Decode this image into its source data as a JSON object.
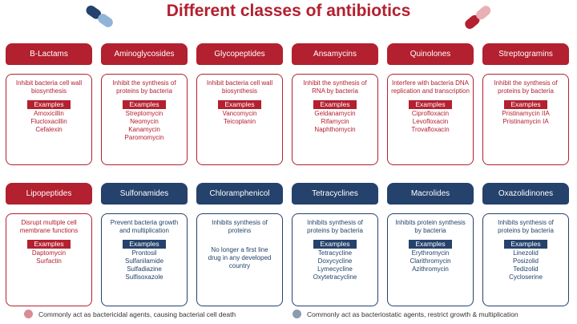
{
  "title": "Different classes of antibiotics",
  "classes": [
    {
      "name": "B-Lactams",
      "color": "#b3202f",
      "mechanism": "Inhibit bacteria cell wall biosynthesis",
      "examples_label": "Examples",
      "examples": [
        "Amoxicillin",
        "Flucloxacillin",
        "Cefalexin"
      ]
    },
    {
      "name": "Aminoglycosides",
      "color": "#b3202f",
      "mechanism": "Inhibit the synthesis of proteins by bacteria",
      "examples_label": "Examples",
      "examples": [
        "Streptomycin",
        "Neomycin",
        "Kanamycin",
        "Paromomycin"
      ]
    },
    {
      "name": "Glycopeptides",
      "color": "#b3202f",
      "mechanism": "Inhibit bacteria cell wall biosynthesis",
      "examples_label": "Examples",
      "examples": [
        "Vancomycin",
        "Teicoplanin"
      ]
    },
    {
      "name": "Ansamycins",
      "color": "#b3202f",
      "mechanism": "Inhibit the synthesis of RNA by bacteria",
      "examples_label": "Examples",
      "examples": [
        "Geldanamycin",
        "Rifamycin",
        "Naphthomycin"
      ]
    },
    {
      "name": "Quinolones",
      "color": "#b3202f",
      "mechanism": "Interfere with bacteria DNA replication and transcription",
      "examples_label": "Examples",
      "examples": [
        "Ciprofloxacin",
        "Levofloxacin",
        "Trovafloxacin"
      ]
    },
    {
      "name": "Streptogramins",
      "color": "#b3202f",
      "mechanism": "Inhibit the synthesis of proteins by bacteria",
      "examples_label": "Examples",
      "examples": [
        "Pristinamycin IIA",
        "Pristinamycin IA"
      ]
    },
    {
      "name": "Lipopeptides",
      "color": "#b3202f",
      "mechanism": "Disrupt multiple cell membrane functions",
      "examples_label": "Examples",
      "examples": [
        "Daptomycin",
        "Surfactin"
      ]
    },
    {
      "name": "Sulfonamides",
      "color": "#24426b",
      "mechanism": "Prevent bacteria growth and multiplication",
      "examples_label": "Examples",
      "examples": [
        "Prontosil",
        "Sulfanilamide",
        "Sulfadiazine",
        "Sulfisoxazole"
      ]
    },
    {
      "name": "Chloramphenicol",
      "color": "#24426b",
      "mechanism": "Inhibits synthesis of proteins",
      "note": "No longer a first line drug in any developed country"
    },
    {
      "name": "Tetracyclines",
      "color": "#24426b",
      "mechanism": "Inhibits synthesis of proteins by bacteria",
      "examples_label": "Examples",
      "examples": [
        "Tetracycline",
        "Doxycycline",
        "Lymecycline",
        "Oxytetracycline"
      ]
    },
    {
      "name": "Macrolides",
      "color": "#24426b",
      "mechanism": "Inhibits protein synthesis by bacteria",
      "examples_label": "Examples",
      "examples": [
        "Erythromycin",
        "Clarithromycin",
        "Azithromycin"
      ]
    },
    {
      "name": "Oxazolidinones",
      "color": "#24426b",
      "mechanism": "Inhibits synthesis of proteins by bacteria",
      "examples_label": "Examples",
      "examples": [
        "Linezolid",
        "Posizolid",
        "Tedizolid",
        "Cycloserine"
      ]
    }
  ],
  "legend": [
    {
      "label": "Commonly act as bactericidal agents, causing bacterial cell death",
      "color": "#d98c94"
    },
    {
      "label": "Commonly act as bacteriostatic agents, restrict growth & multiplication",
      "color": "#8c9bb0"
    }
  ]
}
